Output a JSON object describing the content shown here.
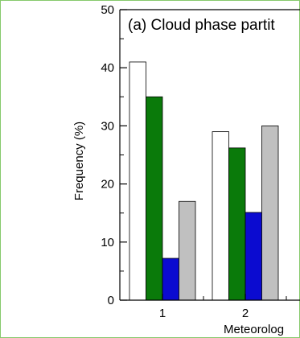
{
  "chart_data": {
    "type": "bar",
    "title": "(a) Cloud phase partit",
    "xlabel": "Meteorolog",
    "ylabel": "Frequency (%)",
    "ylim": [
      0,
      50
    ],
    "yticks": [
      "0",
      "10",
      "20",
      "30",
      "40",
      "50"
    ],
    "categories": [
      "1",
      "2"
    ],
    "series": [
      {
        "color": "#ffffff",
        "values": [
          41,
          29
        ]
      },
      {
        "color": "#0a7a0a",
        "values": [
          35,
          26.2
        ]
      },
      {
        "color": "#0b0bd0",
        "values": [
          7.2,
          15.1
        ]
      },
      {
        "color": "#c0c0c0",
        "values": [
          17,
          30
        ]
      }
    ],
    "grid": false
  }
}
